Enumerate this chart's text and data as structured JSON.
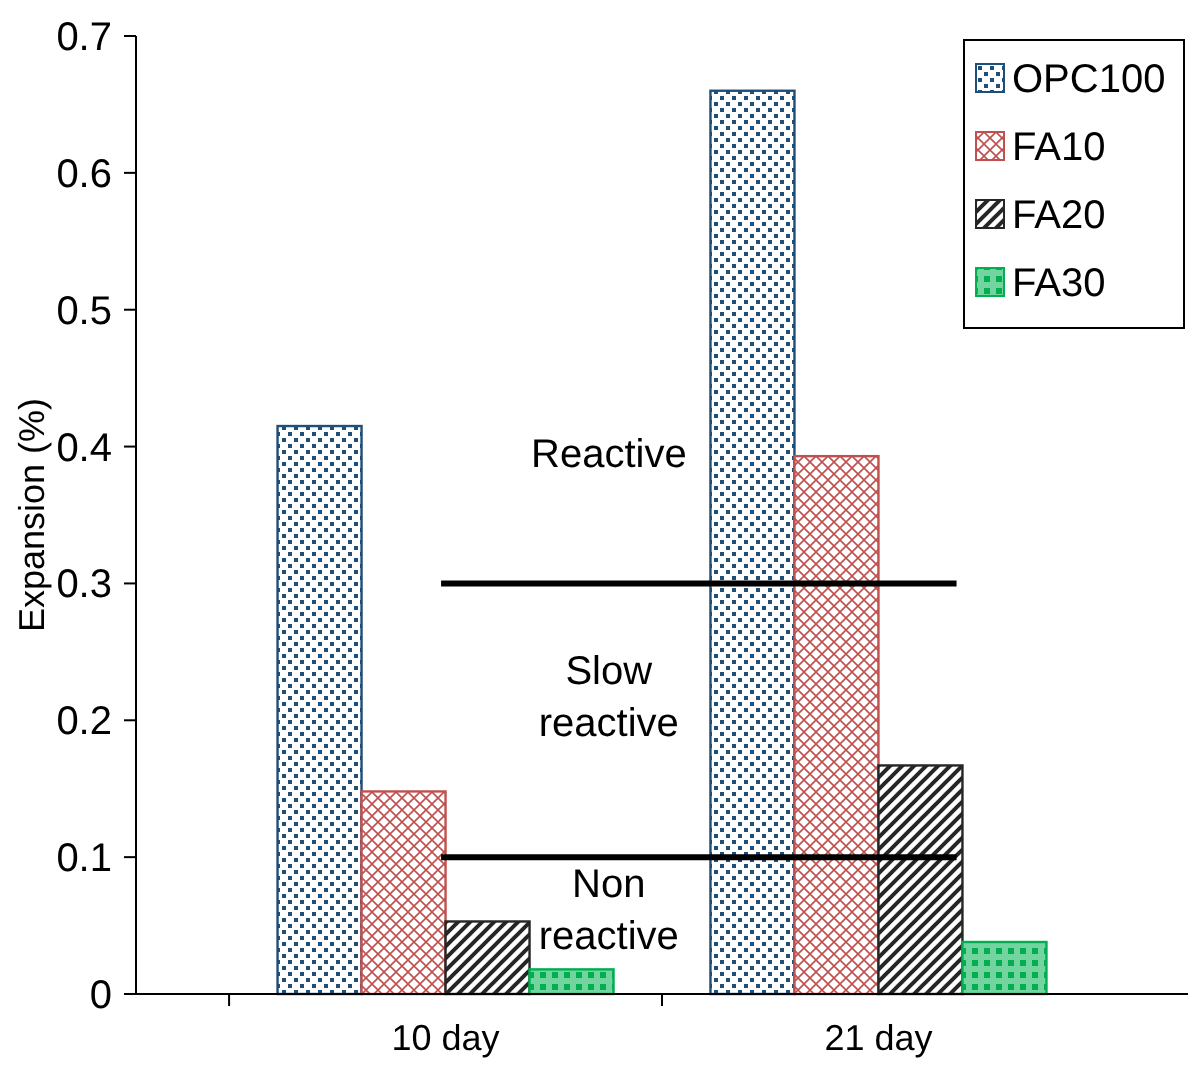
{
  "chart_data": {
    "type": "bar",
    "ylabel": "Expansion (%)",
    "categories": [
      "10 day",
      "21 day"
    ],
    "series": [
      {
        "name": "OPC100",
        "color": "#1f4e79",
        "values": [
          0.415,
          0.66
        ]
      },
      {
        "name": "FA10",
        "color": "#c0504d",
        "values": [
          0.148,
          0.393
        ]
      },
      {
        "name": "FA20",
        "color": "#262626",
        "values": [
          0.053,
          0.167
        ]
      },
      {
        "name": "FA30",
        "color": "#00b050",
        "values": [
          0.018,
          0.038
        ]
      }
    ],
    "ylim": [
      0,
      0.7
    ],
    "yticks": [
      0,
      0.1,
      0.2,
      0.3,
      0.4,
      0.5,
      0.6,
      0.7
    ],
    "grid": false,
    "legend": "top right",
    "ref_lines": [
      {
        "axis": "y",
        "value": 0.3,
        "color": "#000000"
      },
      {
        "axis": "y",
        "value": 0.1,
        "color": "#000000"
      }
    ],
    "annotations": [
      "Reactive",
      "Slow\nreactive",
      "Non\nreactive"
    ]
  }
}
